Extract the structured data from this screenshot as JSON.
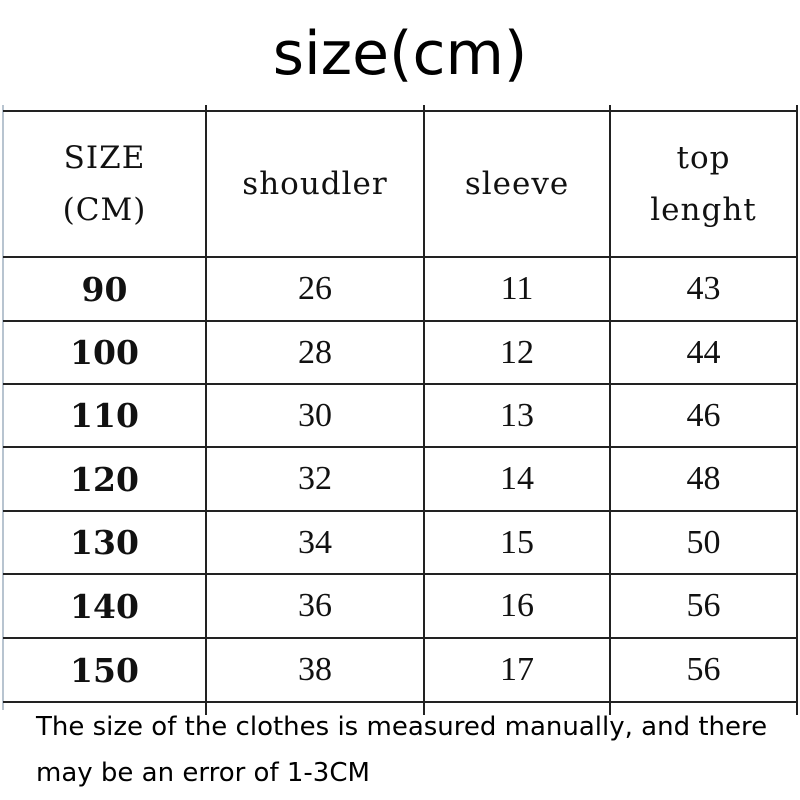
{
  "title": "size(cm)",
  "table": {
    "headers": [
      "SIZE\n(CM)",
      "shoudler",
      "sleeve",
      "top\nlenght"
    ],
    "header_lines": [
      [
        "SIZE",
        "(CM)"
      ],
      [
        "shoudler"
      ],
      [
        "sleeve"
      ],
      [
        "top",
        "lenght"
      ]
    ],
    "rows": [
      [
        "90",
        "26",
        "11",
        "43"
      ],
      [
        "100",
        "28",
        "12",
        "44"
      ],
      [
        "110",
        "30",
        "13",
        "46"
      ],
      [
        "120",
        "32",
        "14",
        "48"
      ],
      [
        "130",
        "34",
        "15",
        "50"
      ],
      [
        "140",
        "36",
        "16",
        "56"
      ],
      [
        "150",
        "38",
        "17",
        "56"
      ]
    ]
  },
  "note": "The size of the clothes is measured manually, and there may be an error of 1-3CM"
}
